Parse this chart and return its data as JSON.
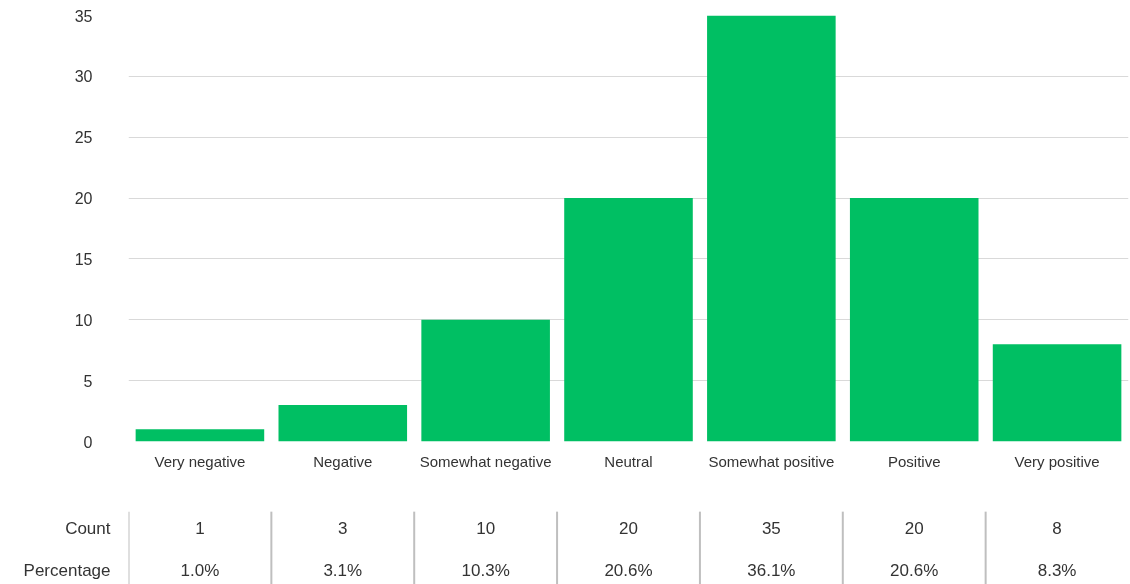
{
  "chart_data": {
    "type": "bar",
    "categories": [
      "Very negative",
      "Negative",
      "Somewhat negative",
      "Neutral",
      "Somewhat positive",
      "Positive",
      "Very positive"
    ],
    "values": [
      1,
      3,
      10,
      20,
      35,
      20,
      8
    ],
    "color": "#00bf63",
    "ylim": [
      0,
      35
    ],
    "yticks": [
      0,
      5,
      10,
      15,
      20,
      25,
      30,
      35
    ],
    "grid": "y",
    "data_labels": true,
    "annotations": [
      "Count",
      "Percentage",
      "1.0%",
      "3.1%",
      "10.3%",
      "20.6%",
      "36.1%",
      "20.6%",
      "8.3%"
    ]
  }
}
